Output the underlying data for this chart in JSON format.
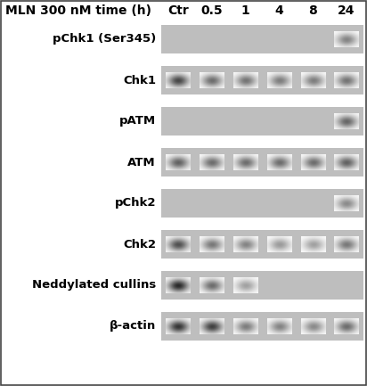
{
  "title_left": "MLN 300 nM time (h)",
  "col_labels": [
    "Ctr",
    "0.5",
    "1",
    "4",
    "8",
    "24"
  ],
  "background_color": "#ffffff",
  "fig_width": 4.12,
  "fig_height": 4.33,
  "dpi": 100,
  "label_fontsize": 9.5,
  "header_fontsize": 10,
  "rows": [
    {
      "label": "pChk1 (Ser345)",
      "bands": [
        0.0,
        0.0,
        0.0,
        0.0,
        0.0,
        0.55
      ]
    },
    {
      "label": "Chk1",
      "bands": [
        0.82,
        0.65,
        0.62,
        0.58,
        0.58,
        0.62
      ]
    },
    {
      "label": "pATM",
      "bands": [
        0.0,
        0.0,
        0.0,
        0.0,
        0.0,
        0.68
      ]
    },
    {
      "label": "ATM",
      "bands": [
        0.7,
        0.65,
        0.65,
        0.65,
        0.65,
        0.7
      ]
    },
    {
      "label": "pChk2",
      "bands": [
        0.0,
        0.0,
        0.0,
        0.0,
        0.0,
        0.52
      ]
    },
    {
      "label": "Chk2",
      "bands": [
        0.78,
        0.6,
        0.55,
        0.45,
        0.42,
        0.6
      ]
    },
    {
      "label": "Neddylated cullins",
      "bands": [
        0.95,
        0.65,
        0.42,
        0.0,
        0.0,
        0.0
      ]
    },
    {
      "label": "β-actin",
      "bands": [
        0.9,
        0.85,
        0.58,
        0.55,
        0.52,
        0.65
      ]
    }
  ]
}
